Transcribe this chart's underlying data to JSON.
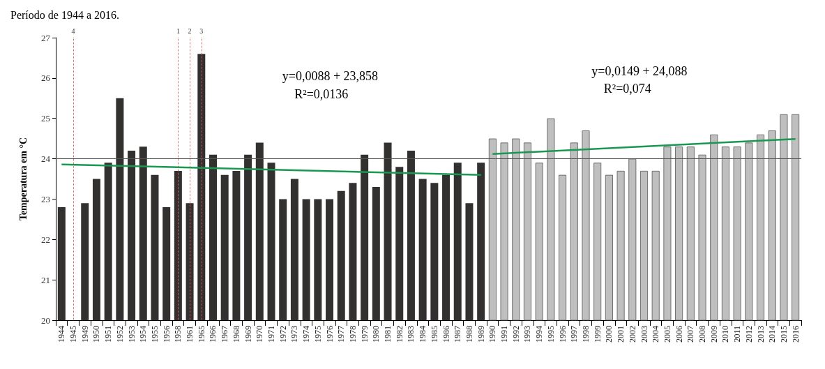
{
  "chart_data": {
    "type": "bar",
    "title": "Período de 1944 a 2016.",
    "ylabel": "Temperatura em °C",
    "categories": [
      "1944",
      "1945",
      "1949",
      "1950",
      "1951",
      "1952",
      "1953",
      "1954",
      "1955",
      "1956",
      "1958",
      "1961",
      "1965",
      "1966",
      "1967",
      "1968",
      "1969",
      "1970",
      "1971",
      "1972",
      "1973",
      "1974",
      "1975",
      "1976",
      "1977",
      "1978",
      "1979",
      "1980",
      "1981",
      "1982",
      "1983",
      "1984",
      "1985",
      "1986",
      "1987",
      "1988",
      "1989",
      "1990",
      "1991",
      "1992",
      "1993",
      "1994",
      "1995",
      "1996",
      "1997",
      "1998",
      "1999",
      "2000",
      "2001",
      "2002",
      "2003",
      "2004",
      "2005",
      "2006",
      "2007",
      "2008",
      "2009",
      "2010",
      "2011",
      "2012",
      "2013",
      "2014",
      "2015",
      "2016"
    ],
    "series": [
      {
        "color": "#333030",
        "values": [
          22.8,
          null,
          22.9,
          23.5,
          23.9,
          25.5,
          24.2,
          24.3,
          23.6,
          22.8,
          23.7,
          22.9,
          26.6,
          24.1,
          23.6,
          23.7,
          24.1,
          24.4,
          23.9,
          23.0,
          23.5,
          23.0,
          23.0,
          23.0,
          23.2,
          23.4,
          24.1,
          23.3,
          24.4,
          23.8,
          24.2,
          23.5,
          23.4,
          23.6,
          23.9,
          22.9,
          23.9,
          null,
          null,
          null,
          null,
          null,
          null,
          null,
          null,
          null,
          null,
          null,
          null,
          null,
          null,
          null,
          null,
          null,
          null,
          null,
          null,
          null,
          null,
          null,
          null,
          null,
          null,
          null
        ]
      },
      {
        "color": "#bfbfbf",
        "values": [
          null,
          null,
          null,
          null,
          null,
          null,
          null,
          null,
          null,
          null,
          null,
          null,
          null,
          null,
          null,
          null,
          null,
          null,
          null,
          null,
          null,
          null,
          null,
          null,
          null,
          null,
          null,
          null,
          null,
          null,
          null,
          null,
          null,
          null,
          null,
          null,
          null,
          24.5,
          24.4,
          24.5,
          24.4,
          23.9,
          25.0,
          23.6,
          24.4,
          24.7,
          23.9,
          23.6,
          23.7,
          24.0,
          23.7,
          23.7,
          24.3,
          24.3,
          24.3,
          24.1,
          24.6,
          24.3,
          24.3,
          24.4,
          24.6,
          24.7,
          25.1,
          25.1
        ]
      },
      {
        "type": "line",
        "color": "#1a9850",
        "values": [
          23.86,
          null,
          null,
          null,
          null,
          null,
          null,
          null,
          null,
          null,
          null,
          null,
          null,
          null,
          null,
          null,
          null,
          null,
          null,
          null,
          null,
          null,
          null,
          null,
          null,
          null,
          null,
          null,
          null,
          null,
          null,
          null,
          null,
          null,
          null,
          null,
          23.6,
          null,
          null,
          null,
          null,
          null,
          null,
          null,
          null,
          null,
          null,
          null,
          null,
          null,
          null,
          null,
          null,
          null,
          null,
          null,
          null,
          null,
          null,
          null,
          null,
          null,
          null,
          null
        ]
      },
      {
        "type": "line",
        "color": "#1a9850",
        "values": [
          null,
          null,
          null,
          null,
          null,
          null,
          null,
          null,
          null,
          null,
          null,
          null,
          null,
          null,
          null,
          null,
          null,
          null,
          null,
          null,
          null,
          null,
          null,
          null,
          null,
          null,
          null,
          null,
          null,
          null,
          null,
          null,
          null,
          null,
          null,
          null,
          null,
          24.12,
          null,
          null,
          null,
          null,
          null,
          null,
          null,
          null,
          null,
          null,
          null,
          null,
          null,
          null,
          null,
          null,
          null,
          null,
          null,
          null,
          null,
          null,
          null,
          null,
          null,
          24.49
        ]
      }
    ],
    "ylim": [
      20,
      27
    ],
    "yticks": [
      20,
      21,
      22,
      23,
      24,
      25,
      26,
      27
    ],
    "grid": false,
    "ref_lines": [
      {
        "axis": "y",
        "value": 24,
        "color": "#555555",
        "line_style": "solid"
      },
      {
        "axis": "x",
        "value": "1945",
        "label": "4",
        "color": "#e06060",
        "line_style": "dotted"
      },
      {
        "axis": "x",
        "value": "1958",
        "label": "1",
        "color": "#e06060",
        "line_style": "dotted"
      },
      {
        "axis": "x",
        "value": "1961",
        "label": "2",
        "color": "#e06060",
        "line_style": "dotted"
      },
      {
        "axis": "x",
        "value": "1965",
        "label": "3",
        "color": "#e06060",
        "line_style": "dotted"
      }
    ],
    "annotations": [
      "y=0,0088 + 23,858",
      "R²=0,0136",
      "y=0,0149 + 24,088",
      "R²=0,074"
    ]
  }
}
